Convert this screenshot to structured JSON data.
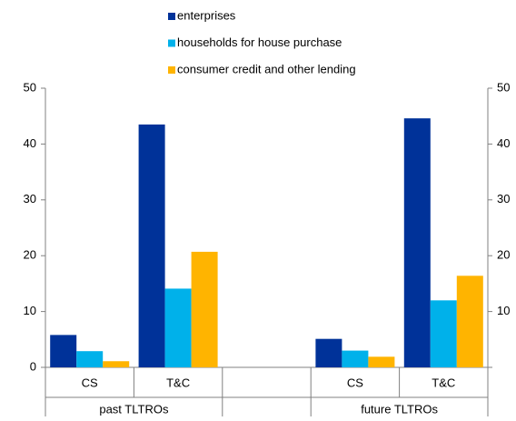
{
  "chart_data": {
    "type": "bar",
    "categories": [
      "CS",
      "T&C",
      null,
      "CS",
      "T&C"
    ],
    "group_labels": [
      "past TLTROs",
      "future TLTROs"
    ],
    "series": [
      {
        "name": "enterprises",
        "color": "#003299",
        "values": [
          5.8,
          43.5,
          null,
          5.1,
          44.6
        ]
      },
      {
        "name": "households for house purchase",
        "color": "#00b1ea",
        "values": [
          2.9,
          14.1,
          null,
          3.0,
          12.0
        ]
      },
      {
        "name": "consumer credit and other lending",
        "color": "#ffb400",
        "values": [
          1.1,
          20.7,
          null,
          1.9,
          16.4
        ]
      }
    ],
    "ylim": [
      0,
      50
    ],
    "yticks": [
      0,
      10,
      20,
      30,
      40,
      50
    ],
    "grid": false,
    "legend": "top"
  }
}
